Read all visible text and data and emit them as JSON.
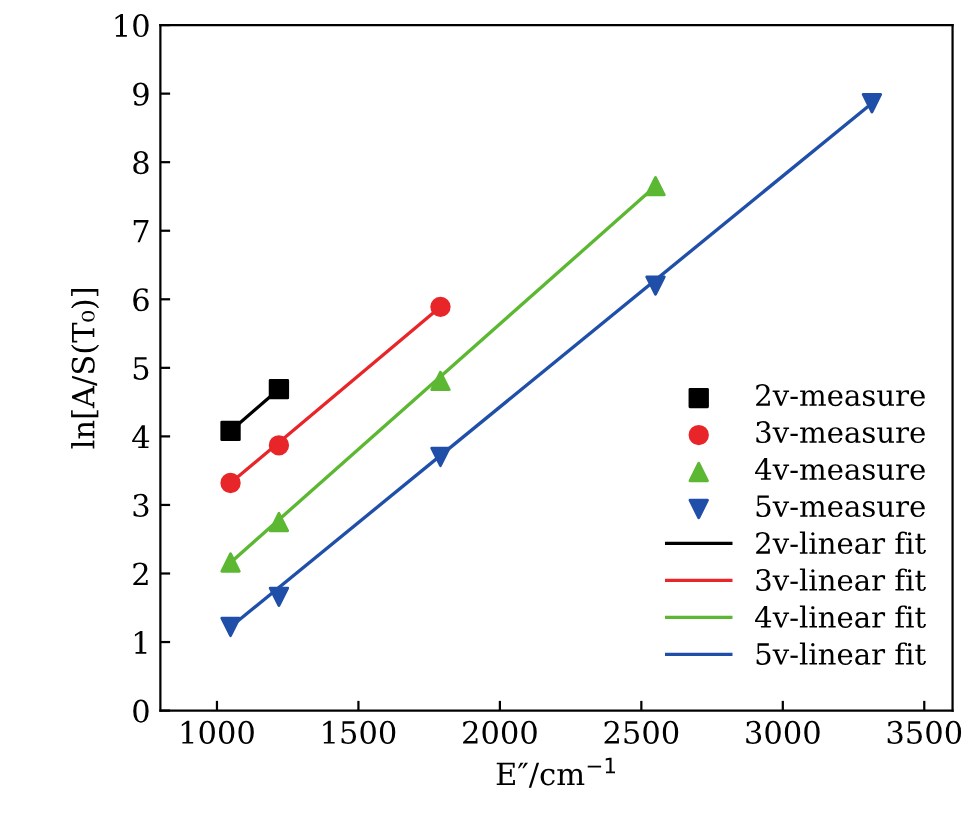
{
  "chart_data": {
    "type": "scatter",
    "xlabel": "E″/cm$^{−1}$",
    "ylabel": "ln[A/S(T₀)]",
    "xlim": [
      800,
      3600
    ],
    "xticks": [
      1000,
      1500,
      2000,
      2500,
      3000,
      3500
    ],
    "ylim": [
      0,
      10
    ],
    "yticks": [
      0,
      1,
      2,
      3,
      4,
      5,
      6,
      7,
      8,
      9,
      10
    ],
    "grid": false,
    "legend": "bottom right",
    "series": [
      {
        "name": "2v-measure",
        "color": "#000000",
        "marker": "square",
        "x": [
          1048,
          1219
        ],
        "values": [
          4.08,
          4.69
        ]
      },
      {
        "name": "3v-measure",
        "color": "#e8262a",
        "marker": "circle",
        "x": [
          1048,
          1219,
          1790
        ],
        "values": [
          3.32,
          3.87,
          5.89
        ]
      },
      {
        "name": "4v-measure",
        "color": "#5cb833",
        "marker": "triangle",
        "x": [
          1048,
          1219,
          1790,
          2550
        ],
        "values": [
          2.16,
          2.75,
          4.81,
          7.65
        ]
      },
      {
        "name": "5v-measure",
        "color": "#1f4fa8",
        "marker": "triangle_down",
        "x": [
          1048,
          1219,
          1790,
          2550,
          3315
        ],
        "values": [
          1.22,
          1.66,
          3.7,
          6.2,
          8.86
        ]
      },
      {
        "name": "2v-linear fit",
        "type": "line",
        "color": "#000000",
        "x": [
          1048,
          1219
        ],
        "values": [
          4.08,
          4.69
        ]
      },
      {
        "name": "3v-linear fit",
        "type": "line",
        "color": "#e8262a",
        "x": [
          1048,
          1790
        ],
        "values": [
          3.32,
          5.89
        ]
      },
      {
        "name": "4v-linear fit",
        "type": "line",
        "color": "#5cb833",
        "x": [
          1048,
          2550
        ],
        "values": [
          2.16,
          7.65
        ]
      },
      {
        "name": "5v-linear fit",
        "type": "line",
        "color": "#1f4fa8",
        "x": [
          1048,
          3315
        ],
        "values": [
          1.22,
          8.86
        ]
      }
    ]
  }
}
